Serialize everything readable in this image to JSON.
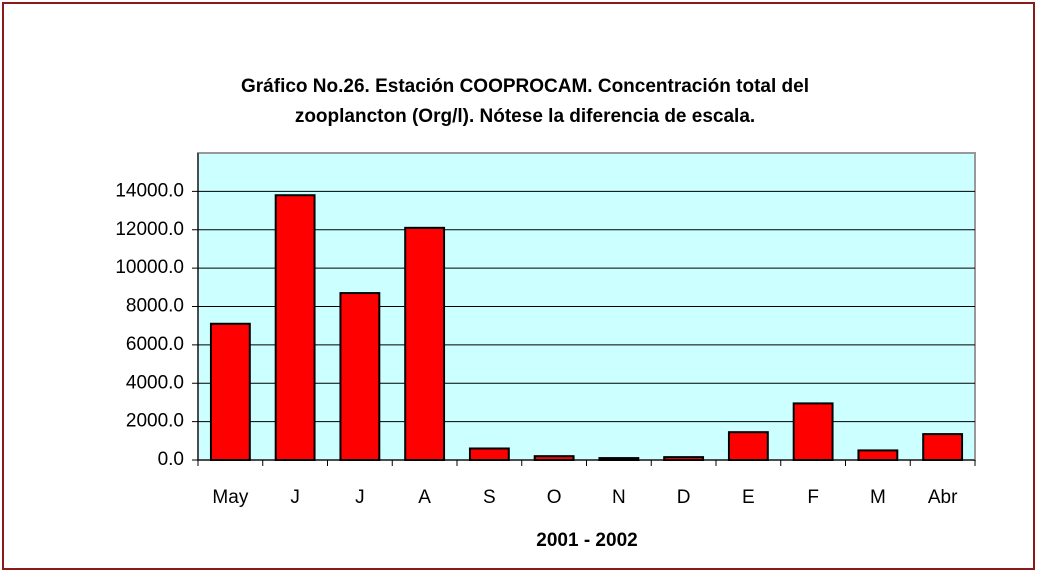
{
  "chart_data": {
    "type": "bar",
    "title": [
      "Gráfico No.26. Estación COOPROCAM. Concentración total del",
      "zooplancton (Org/l). Nótese la diferencia de escala."
    ],
    "x_label": "2001 - 2002",
    "categories": [
      "May",
      "J",
      "J",
      "A",
      "S",
      "O",
      "N",
      "D",
      "E",
      "F",
      "M",
      "Abr"
    ],
    "values": [
      7100,
      13800,
      8700,
      12100,
      600,
      200,
      100,
      150,
      1450,
      2950,
      500,
      1350
    ],
    "color": "#ff0000",
    "ylim": [
      0,
      16000
    ],
    "yticks": [
      {
        "value": 0,
        "label": "0.0"
      },
      {
        "value": 2000,
        "label": "2000.0"
      },
      {
        "value": 4000,
        "label": "4000.0"
      },
      {
        "value": 6000,
        "label": "6000.0"
      },
      {
        "value": 8000,
        "label": "8000.0"
      },
      {
        "value": 10000,
        "label": "10000.0"
      },
      {
        "value": 12000,
        "label": "12000.0"
      },
      {
        "value": 14000,
        "label": "14000.0"
      }
    ],
    "grid": true,
    "background": "#ccffff"
  }
}
